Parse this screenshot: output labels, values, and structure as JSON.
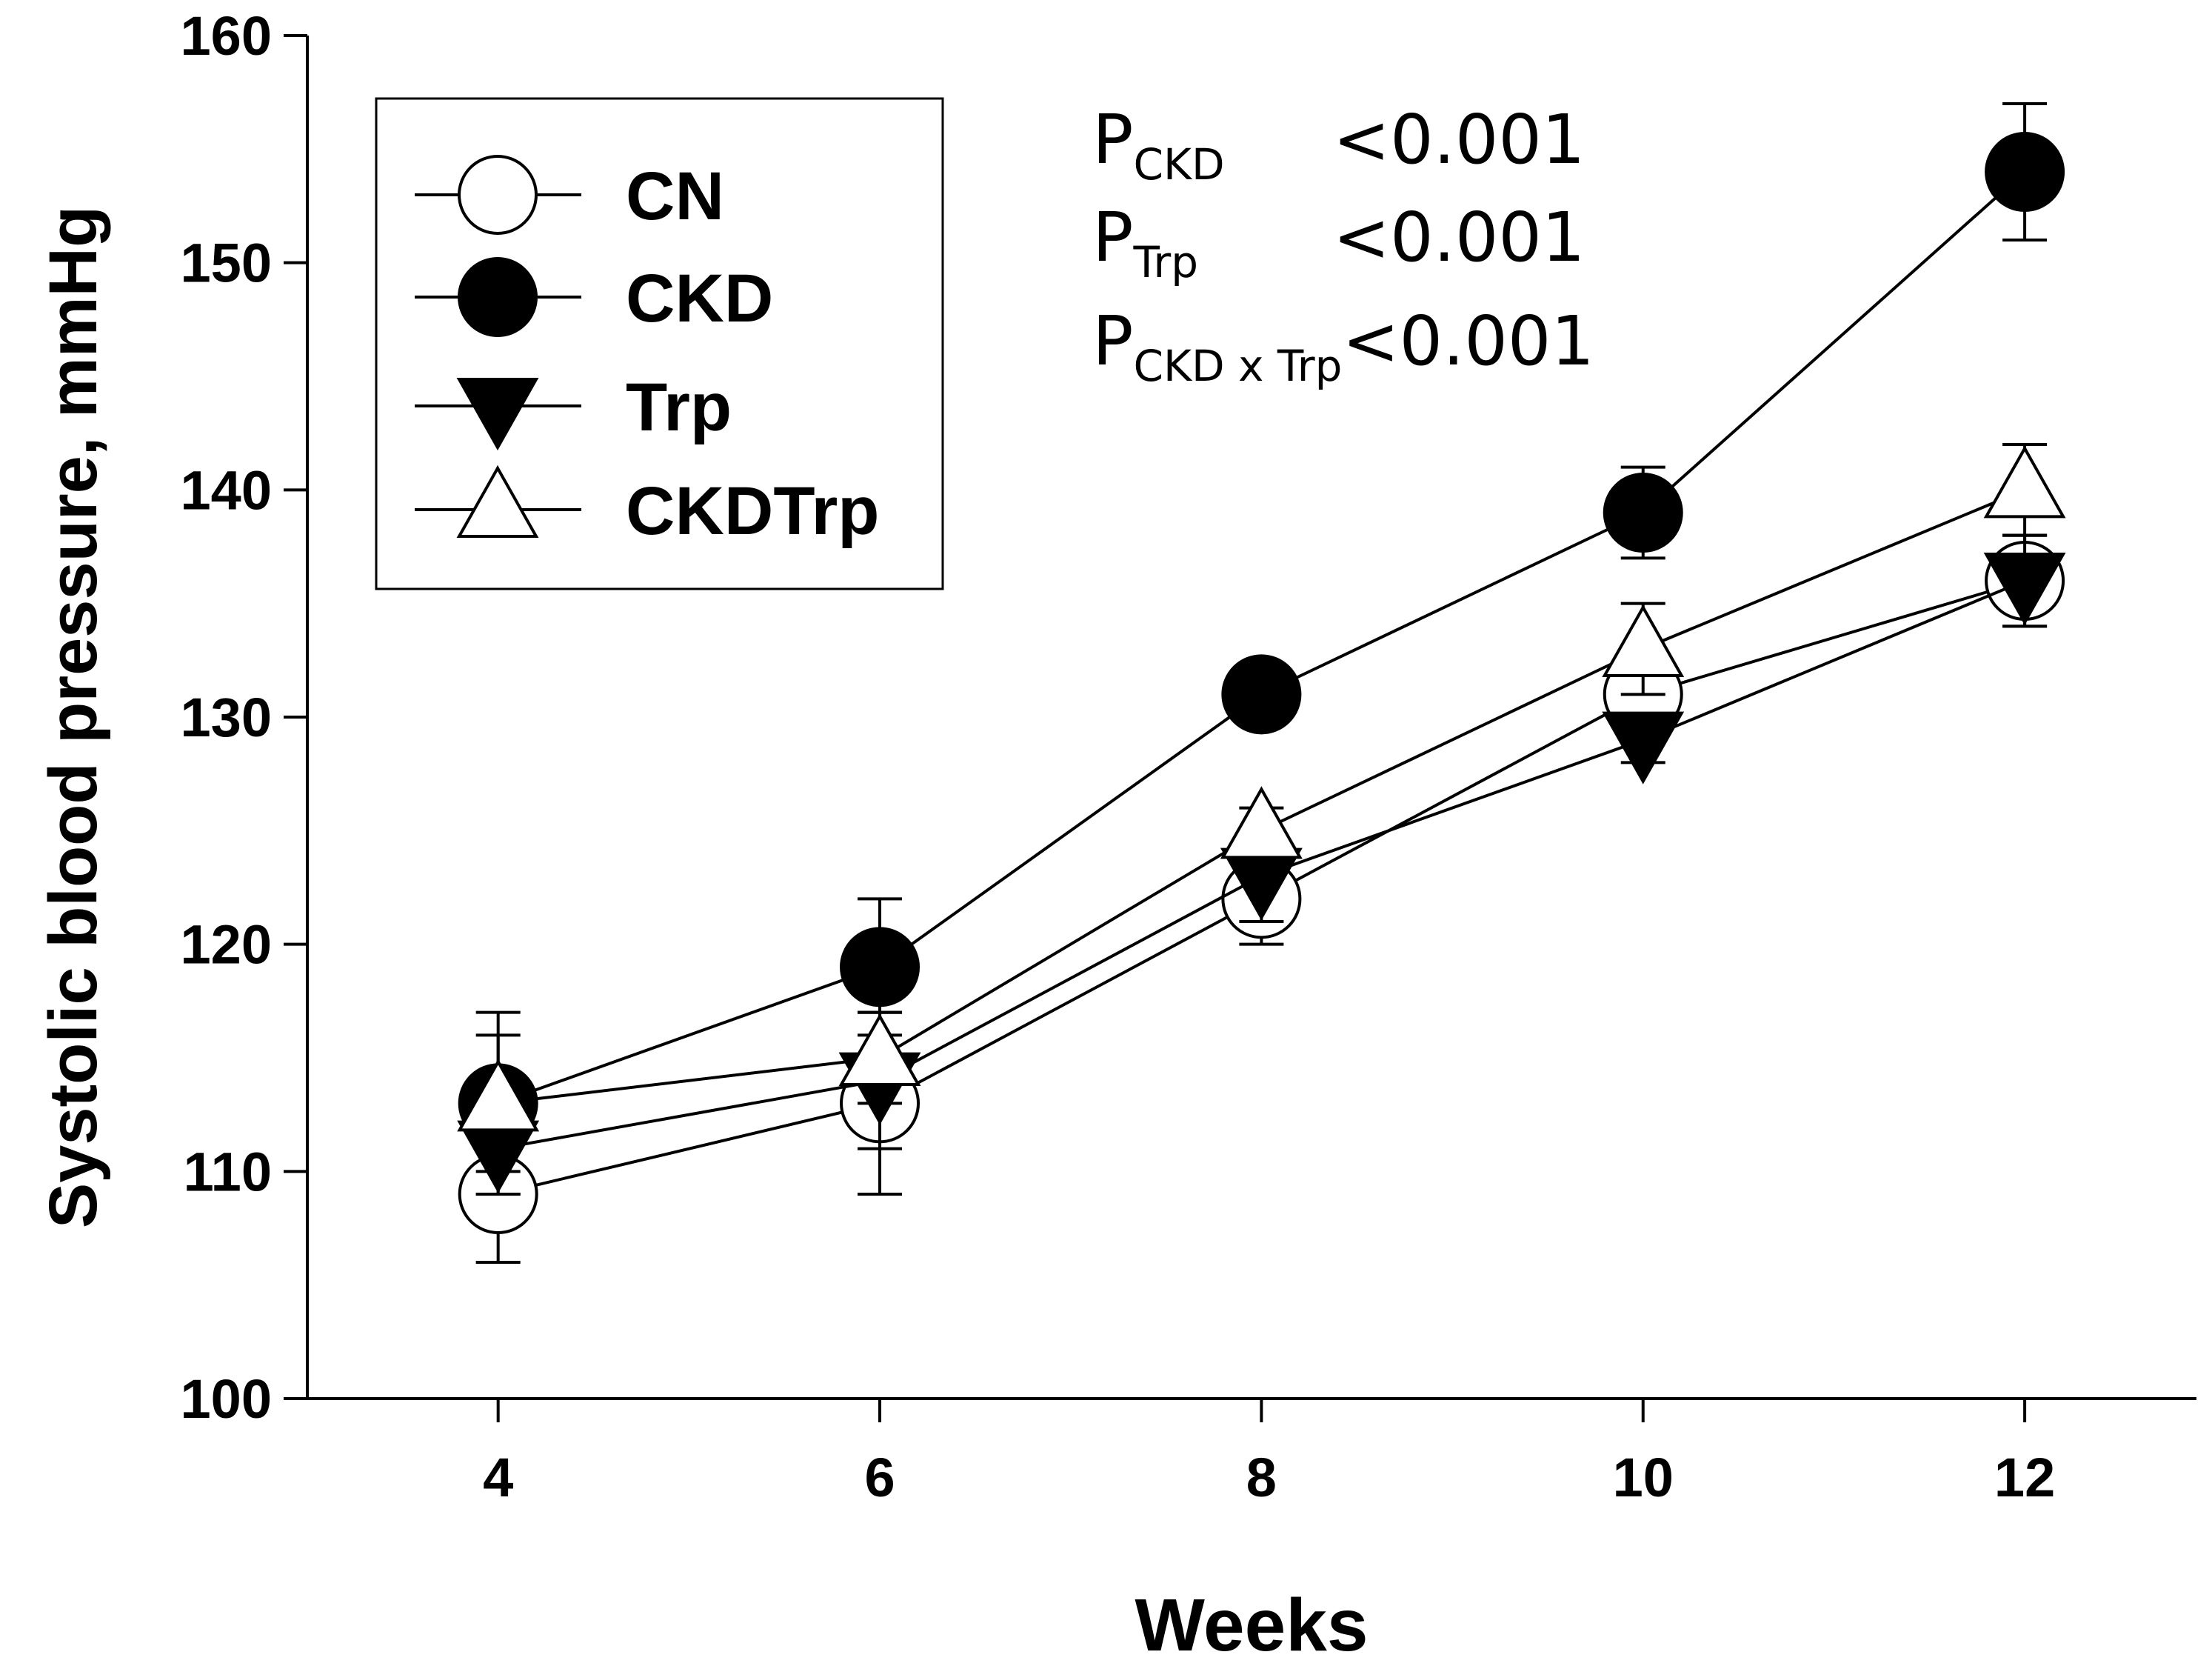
{
  "chart_data": {
    "type": "line",
    "title": "",
    "xlabel": "Weeks",
    "ylabel": "Systolic blood pressure, mmHg",
    "x": [
      4,
      6,
      8,
      10,
      12
    ],
    "x_ticks": [
      "4",
      "6",
      "8",
      "10",
      "12"
    ],
    "xlim": [
      3,
      12.9
    ],
    "ylim": [
      100,
      160
    ],
    "y_ticks": [
      "100",
      "110",
      "120",
      "130",
      "140",
      "150",
      "160"
    ],
    "grid": false,
    "legend_position": "top-left",
    "series": [
      {
        "name": "CN",
        "marker": "open-circle",
        "values": [
          109,
          113,
          122,
          131,
          136
        ],
        "error": [
          3,
          4,
          2,
          1,
          2
        ]
      },
      {
        "name": "CKD",
        "marker": "filled-circle",
        "values": [
          113,
          119,
          131,
          139,
          154
        ],
        "error": [
          4,
          3,
          1,
          2,
          3
        ]
      },
      {
        "name": "Trp",
        "marker": "filled-triangle-down",
        "values": [
          111,
          114,
          123,
          129,
          136
        ],
        "error": [
          2,
          3,
          2,
          1,
          2
        ]
      },
      {
        "name": "CKDTrp",
        "marker": "open-triangle-up",
        "values": [
          113,
          115,
          125,
          133,
          140
        ],
        "error": [
          3,
          2,
          1,
          2,
          2
        ]
      }
    ],
    "annotations": [
      {
        "main": "P",
        "sub": "CKD",
        "value": "<0.001"
      },
      {
        "main": "P",
        "sub": "Trp",
        "value": "<0.001"
      },
      {
        "main": "P",
        "sub": "CKD x Trp",
        "value": "<0.001"
      }
    ]
  }
}
